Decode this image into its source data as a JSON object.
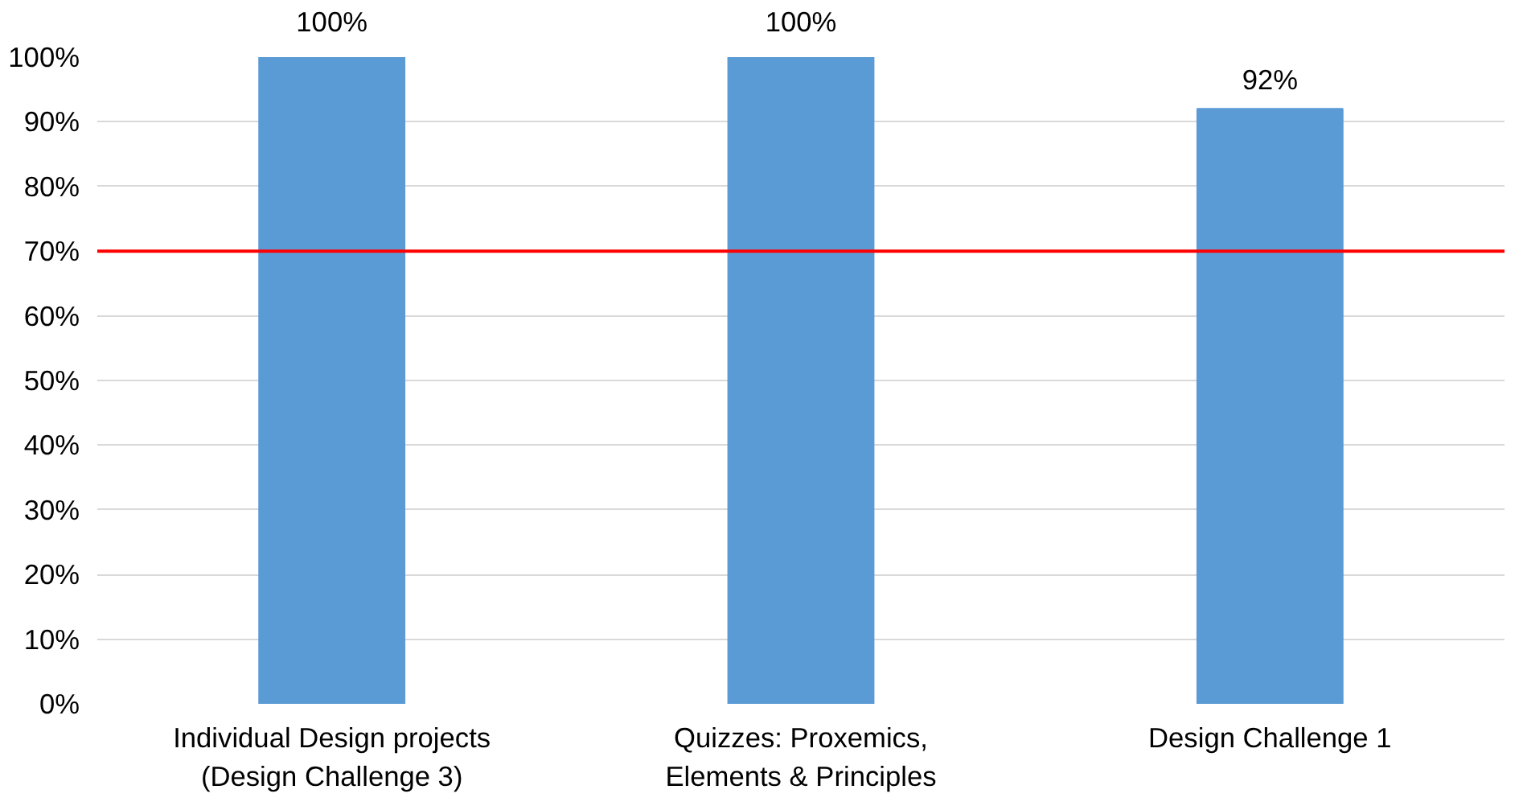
{
  "chart_data": {
    "type": "bar",
    "categories": [
      "Individual Design projects\n(Design Challenge 3)",
      "Quizzes: Proxemics,\nElements & Principles",
      "Design Challenge 1"
    ],
    "values": [
      100,
      100,
      92
    ],
    "color": "#5b9bd5",
    "value_labels": [
      "100%",
      "100%",
      "92%"
    ],
    "ylim": [
      0,
      100
    ],
    "yticks": [
      {
        "value": 0,
        "label": "0%"
      },
      {
        "value": 10,
        "label": "10%"
      },
      {
        "value": 20,
        "label": "20%"
      },
      {
        "value": 30,
        "label": "30%"
      },
      {
        "value": 40,
        "label": "40%"
      },
      {
        "value": 50,
        "label": "50%"
      },
      {
        "value": 60,
        "label": "60%"
      },
      {
        "value": 70,
        "label": "70%"
      },
      {
        "value": 80,
        "label": "80%"
      },
      {
        "value": 90,
        "label": "90%"
      },
      {
        "value": 100,
        "label": "100%"
      }
    ],
    "ref_lines": [
      {
        "axis": "y",
        "value": 70,
        "color": "#ff0000"
      }
    ],
    "grid": "y"
  }
}
